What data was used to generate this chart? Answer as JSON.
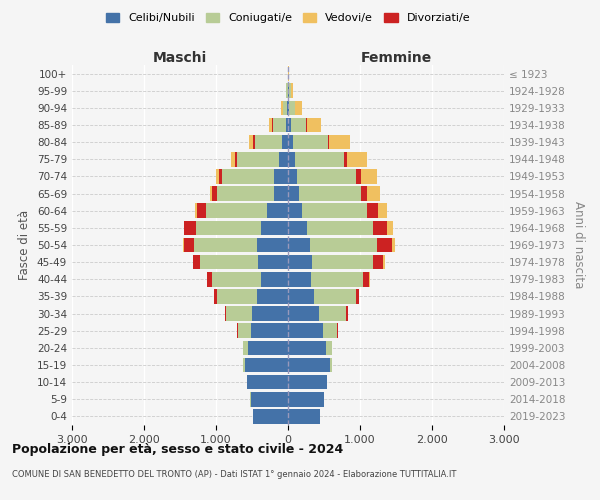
{
  "age_groups": [
    "0-4",
    "5-9",
    "10-14",
    "15-19",
    "20-24",
    "25-29",
    "30-34",
    "35-39",
    "40-44",
    "45-49",
    "50-54",
    "55-59",
    "60-64",
    "65-69",
    "70-74",
    "75-79",
    "80-84",
    "85-89",
    "90-94",
    "95-99",
    "100+"
  ],
  "birth_years": [
    "2019-2023",
    "2014-2018",
    "2009-2013",
    "2004-2008",
    "1999-2003",
    "1994-1998",
    "1989-1993",
    "1984-1988",
    "1979-1983",
    "1974-1978",
    "1969-1973",
    "1964-1968",
    "1959-1963",
    "1954-1958",
    "1949-1953",
    "1944-1948",
    "1939-1943",
    "1934-1938",
    "1929-1933",
    "1924-1928",
    "≤ 1923"
  ],
  "males": {
    "celibe": [
      480,
      520,
      570,
      600,
      560,
      520,
      500,
      430,
      380,
      420,
      430,
      380,
      290,
      200,
      190,
      130,
      80,
      30,
      10,
      5,
      2
    ],
    "coniugato": [
      1,
      2,
      5,
      20,
      60,
      180,
      360,
      560,
      680,
      800,
      880,
      900,
      850,
      780,
      720,
      580,
      380,
      180,
      60,
      20,
      3
    ],
    "vedovo": [
      0,
      0,
      0,
      0,
      0,
      0,
      1,
      2,
      3,
      5,
      8,
      10,
      15,
      30,
      40,
      50,
      60,
      50,
      20,
      5,
      1
    ],
    "divorziato": [
      0,
      0,
      0,
      0,
      2,
      5,
      20,
      40,
      60,
      100,
      140,
      160,
      130,
      70,
      50,
      30,
      20,
      10,
      2,
      1,
      0
    ]
  },
  "females": {
    "nubile": [
      440,
      500,
      540,
      580,
      530,
      490,
      430,
      360,
      320,
      330,
      310,
      260,
      200,
      150,
      130,
      100,
      70,
      35,
      15,
      10,
      2
    ],
    "coniugata": [
      1,
      3,
      8,
      25,
      80,
      190,
      380,
      580,
      720,
      850,
      930,
      920,
      900,
      860,
      820,
      680,
      480,
      220,
      80,
      30,
      2
    ],
    "vedova": [
      0,
      0,
      0,
      0,
      1,
      2,
      4,
      8,
      15,
      30,
      50,
      80,
      120,
      180,
      230,
      280,
      280,
      200,
      90,
      30,
      5
    ],
    "divorziata": [
      0,
      0,
      0,
      0,
      3,
      8,
      20,
      45,
      80,
      140,
      200,
      200,
      150,
      90,
      60,
      40,
      25,
      10,
      3,
      1,
      0
    ]
  },
  "colors": {
    "celibe": "#4472a8",
    "coniugato": "#b8cc96",
    "vedovo": "#f0c060",
    "divorziato": "#cc2222"
  },
  "title1": "Popolazione per età, sesso e stato civile - 2024",
  "title2": "COMUNE DI SAN BENEDETTO DEL TRONTO (AP) - Dati ISTAT 1° gennaio 2024 - Elaborazione TUTTITALIA.IT",
  "xlabel_left": "Maschi",
  "xlabel_right": "Femmine",
  "ylabel_left": "Fasce di età",
  "ylabel_right": "Anni di nascita",
  "xlim": 3000,
  "background_color": "#f5f5f5",
  "legend_labels": [
    "Celibi/Nubili",
    "Coniugati/e",
    "Vedovi/e",
    "Divorziati/e"
  ]
}
